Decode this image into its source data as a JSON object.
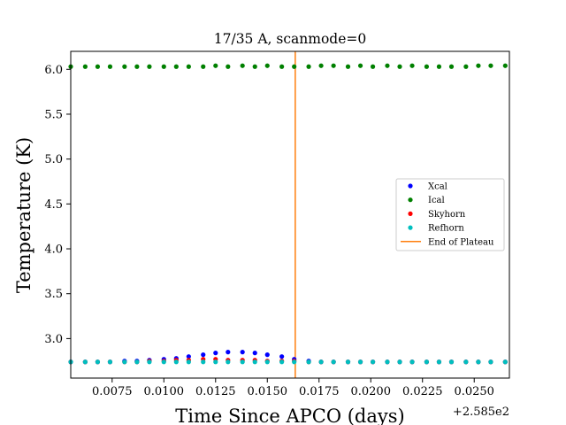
{
  "chart_data": {
    "type": "scatter",
    "title": "17/35 A, scanmode=0",
    "xlabel": "Time Since APCO (days)",
    "ylabel": "Temperature (K)",
    "x_offset_label": "+2.585e2",
    "xlim": [
      0.0055,
      0.0267
    ],
    "ylim": [
      2.56,
      6.2
    ],
    "xticks": [
      0.0075,
      0.01,
      0.0125,
      0.015,
      0.0175,
      0.02,
      0.0225,
      0.025
    ],
    "xtick_labels": [
      "0.0075",
      "0.0100",
      "0.0125",
      "0.0150",
      "0.0175",
      "0.0200",
      "0.0225",
      "0.0250"
    ],
    "yticks": [
      3.0,
      3.5,
      4.0,
      4.5,
      5.0,
      5.5,
      6.0
    ],
    "ytick_labels": [
      "3.0",
      "3.5",
      "4.0",
      "4.5",
      "5.0",
      "5.5",
      "6.0"
    ],
    "grid": false,
    "legend_position": "center-right",
    "x": [
      0.0055,
      0.0062,
      0.0068,
      0.0074,
      0.0081,
      0.0087,
      0.0093,
      0.01,
      0.0106,
      0.0112,
      0.0119,
      0.0125,
      0.0131,
      0.0138,
      0.0144,
      0.015,
      0.0157,
      0.0163,
      0.017,
      0.0176,
      0.0182,
      0.0189,
      0.0195,
      0.0201,
      0.0208,
      0.0214,
      0.022,
      0.0227,
      0.0233,
      0.0239,
      0.0246,
      0.0252,
      0.0258,
      0.0265
    ],
    "series": [
      {
        "name": "Xcal",
        "color": "#0000ff",
        "values": [
          2.74,
          2.74,
          2.74,
          2.74,
          2.75,
          2.75,
          2.76,
          2.77,
          2.78,
          2.8,
          2.82,
          2.84,
          2.85,
          2.85,
          2.84,
          2.82,
          2.8,
          2.77,
          2.75,
          2.74,
          2.74,
          2.74,
          2.74,
          2.74,
          2.74,
          2.74,
          2.74,
          2.74,
          2.74,
          2.74,
          2.74,
          2.74,
          2.74,
          2.74
        ]
      },
      {
        "name": "Ical",
        "color": "#008000",
        "values": [
          6.03,
          6.03,
          6.03,
          6.03,
          6.03,
          6.03,
          6.03,
          6.03,
          6.03,
          6.03,
          6.03,
          6.04,
          6.03,
          6.04,
          6.03,
          6.04,
          6.03,
          6.03,
          6.03,
          6.04,
          6.04,
          6.03,
          6.04,
          6.03,
          6.04,
          6.03,
          6.04,
          6.03,
          6.03,
          6.03,
          6.03,
          6.04,
          6.04,
          6.04
        ]
      },
      {
        "name": "Skyhorn",
        "color": "#ff0000",
        "values": [
          2.74,
          2.74,
          2.74,
          2.74,
          2.74,
          2.74,
          2.75,
          2.75,
          2.76,
          2.76,
          2.77,
          2.77,
          2.76,
          2.76,
          2.76,
          2.75,
          2.75,
          2.75,
          2.74,
          2.74,
          2.74,
          2.74,
          2.74,
          2.74,
          2.74,
          2.74,
          2.74,
          2.74,
          2.74,
          2.74,
          2.74,
          2.74,
          2.74,
          2.74
        ]
      },
      {
        "name": "Refhorn",
        "color": "#00bfbf",
        "values": [
          2.74,
          2.74,
          2.74,
          2.74,
          2.74,
          2.74,
          2.74,
          2.74,
          2.74,
          2.74,
          2.74,
          2.74,
          2.74,
          2.74,
          2.74,
          2.74,
          2.74,
          2.74,
          2.74,
          2.74,
          2.74,
          2.74,
          2.74,
          2.74,
          2.74,
          2.74,
          2.74,
          2.74,
          2.74,
          2.74,
          2.74,
          2.74,
          2.74,
          2.74
        ]
      }
    ],
    "vline": {
      "name": "End of Plateau",
      "x": 0.01635,
      "color": "#ff7f0e"
    }
  }
}
